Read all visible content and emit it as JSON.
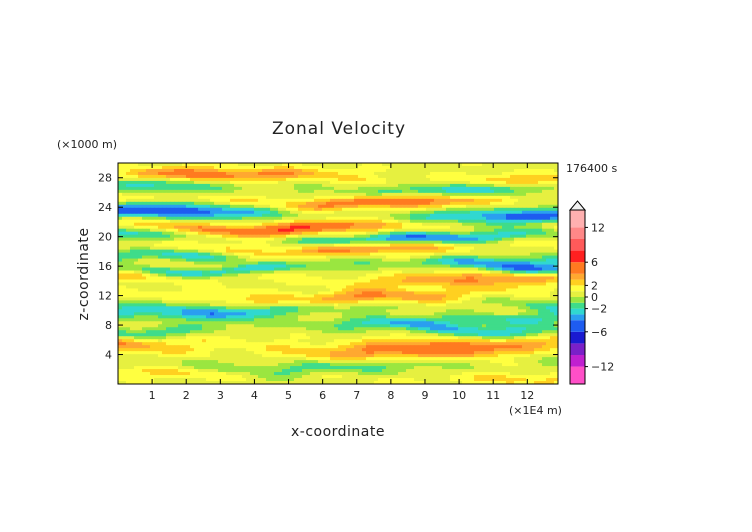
{
  "chart_data": {
    "type": "heatmap",
    "title": "Zonal Velocity",
    "xlabel": "x-coordinate",
    "ylabel": "z-coordinate",
    "x_unit": "(×1E4 m)",
    "y_unit": "(×1000 m)",
    "time_label": "176400 s",
    "xlim": [
      0,
      12.9
    ],
    "ylim": [
      0,
      30
    ],
    "x_ticks": [
      "1",
      "2",
      "3",
      "4",
      "5",
      "6",
      "7",
      "8",
      "9",
      "10",
      "11",
      "12"
    ],
    "y_ticks": [
      "4",
      "8",
      "12",
      "16",
      "20",
      "24",
      "28"
    ],
    "colorbar": {
      "ticks": [
        "12",
        "6",
        "2",
        "0",
        "−2",
        "−6",
        "−12"
      ],
      "tick_values": [
        12,
        6,
        2,
        0,
        -2,
        -6,
        -12
      ],
      "range": [
        -15,
        15
      ]
    },
    "color_levels": [
      {
        "min": -15,
        "max": -12,
        "color": "#ff4fc8"
      },
      {
        "min": -12,
        "max": -10,
        "color": "#c020d0"
      },
      {
        "min": -10,
        "max": -8,
        "color": "#7a20c8"
      },
      {
        "min": -8,
        "max": -6,
        "color": "#1a1ad0"
      },
      {
        "min": -6,
        "max": -4,
        "color": "#1e5cf0"
      },
      {
        "min": -4,
        "max": -3,
        "color": "#2a9ff0"
      },
      {
        "min": -3,
        "max": -2,
        "color": "#30d8d0"
      },
      {
        "min": -2,
        "max": -1,
        "color": "#3fdc8a"
      },
      {
        "min": -1,
        "max": 0,
        "color": "#9ae640"
      },
      {
        "min": 0,
        "max": 1,
        "color": "#e6f040"
      },
      {
        "min": 1,
        "max": 2,
        "color": "#ffff40"
      },
      {
        "min": 2,
        "max": 3,
        "color": "#ffd020"
      },
      {
        "min": 3,
        "max": 4,
        "color": "#ffa830"
      },
      {
        "min": 4,
        "max": 6,
        "color": "#ff7a20"
      },
      {
        "min": 6,
        "max": 8,
        "color": "#ff2020"
      },
      {
        "min": 8,
        "max": 10,
        "color": "#ff5a5a"
      },
      {
        "min": 10,
        "max": 12,
        "color": "#ff8888"
      },
      {
        "min": 12,
        "max": 15,
        "color": "#ffb0b0"
      }
    ],
    "field_bands": [
      {
        "z": 28.0,
        "amp": 3.5,
        "width": 0.9,
        "phase": 0.0
      },
      {
        "z": 26.5,
        "amp": -3.0,
        "width": 1.0,
        "phase": 1.2
      },
      {
        "z": 25.0,
        "amp": 4.0,
        "width": 0.9,
        "phase": 2.1
      },
      {
        "z": 23.0,
        "amp": -5.0,
        "width": 1.0,
        "phase": 0.6
      },
      {
        "z": 21.5,
        "amp": 4.5,
        "width": 0.9,
        "phase": 3.0
      },
      {
        "z": 20.0,
        "amp": -4.0,
        "width": 0.8,
        "phase": 1.7
      },
      {
        "z": 18.5,
        "amp": 3.5,
        "width": 0.9,
        "phase": 2.6
      },
      {
        "z": 17.0,
        "amp": -2.5,
        "width": 0.8,
        "phase": 0.3
      },
      {
        "z": 15.8,
        "amp": -4.0,
        "width": 0.7,
        "phase": 4.0
      },
      {
        "z": 14.5,
        "amp": 3.0,
        "width": 0.9,
        "phase": 1.1
      },
      {
        "z": 12.0,
        "amp": 3.0,
        "width": 1.0,
        "phase": 2.3
      },
      {
        "z": 10.5,
        "amp": -2.5,
        "width": 0.9,
        "phase": 3.4
      },
      {
        "z": 9.0,
        "amp": -2.0,
        "width": 0.8,
        "phase": 0.9
      },
      {
        "z": 7.5,
        "amp": -3.0,
        "width": 0.9,
        "phase": 5.0
      },
      {
        "z": 5.0,
        "amp": 4.0,
        "width": 1.3,
        "phase": 1.6
      },
      {
        "z": 2.5,
        "amp": -2.0,
        "width": 1.0,
        "phase": 2.8
      },
      {
        "z": 1.0,
        "amp": 1.5,
        "width": 0.8,
        "phase": 0.4
      }
    ]
  }
}
